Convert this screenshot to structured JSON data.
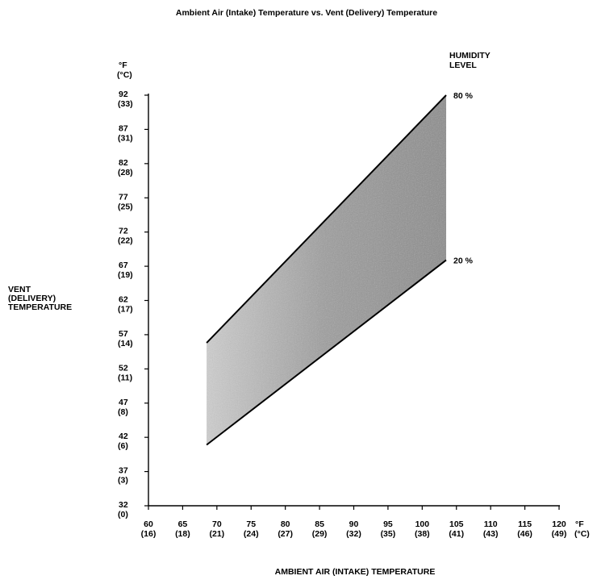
{
  "chart_data": {
    "type": "area",
    "title": "Ambient Air (Intake) Temperature vs. Vent (Delivery) Temperature",
    "xlabel": "AMBIENT AIR (INTAKE) TEMPERATURE",
    "ylabel": [
      "VENT",
      "(DELIVERY)",
      "TEMPERATURE"
    ],
    "x_unit": [
      "°F",
      "(°C)"
    ],
    "y_unit": [
      "°F",
      "(°C)"
    ],
    "xlim": [
      60,
      120
    ],
    "ylim": [
      32,
      92
    ],
    "x_ticks": [
      {
        "f": "60",
        "c": "(16)"
      },
      {
        "f": "65",
        "c": "(18)"
      },
      {
        "f": "70",
        "c": "(21)"
      },
      {
        "f": "75",
        "c": "(24)"
      },
      {
        "f": "80",
        "c": "(27)"
      },
      {
        "f": "85",
        "c": "(29)"
      },
      {
        "f": "90",
        "c": "(32)"
      },
      {
        "f": "95",
        "c": "(35)"
      },
      {
        "f": "100",
        "c": "(38)"
      },
      {
        "f": "105",
        "c": "(41)"
      },
      {
        "f": "110",
        "c": "(43)"
      },
      {
        "f": "115",
        "c": "(46)"
      },
      {
        "f": "120",
        "c": "(49)"
      }
    ],
    "y_ticks": [
      {
        "f": "32",
        "c": "(0)"
      },
      {
        "f": "37",
        "c": "(3)"
      },
      {
        "f": "42",
        "c": "(6)"
      },
      {
        "f": "47",
        "c": "(8)"
      },
      {
        "f": "52",
        "c": "(11)"
      },
      {
        "f": "57",
        "c": "(14)"
      },
      {
        "f": "62",
        "c": "(17)"
      },
      {
        "f": "67",
        "c": "(19)"
      },
      {
        "f": "72",
        "c": "(22)"
      },
      {
        "f": "77",
        "c": "(25)"
      },
      {
        "f": "82",
        "c": "(28)"
      },
      {
        "f": "87",
        "c": "(31)"
      },
      {
        "f": "92",
        "c": "(33)"
      }
    ],
    "legend_title": [
      "HUMIDITY",
      "LEVEL"
    ],
    "series": [
      {
        "name": "80 %",
        "x": [
          68.5,
          103.5
        ],
        "y": [
          55.8,
          92
        ]
      },
      {
        "name": "20 %",
        "x": [
          68.5,
          103.5
        ],
        "y": [
          40.9,
          67.9
        ]
      }
    ],
    "fill_between": true,
    "fill_color": "#9a9a9a",
    "grid": false
  }
}
